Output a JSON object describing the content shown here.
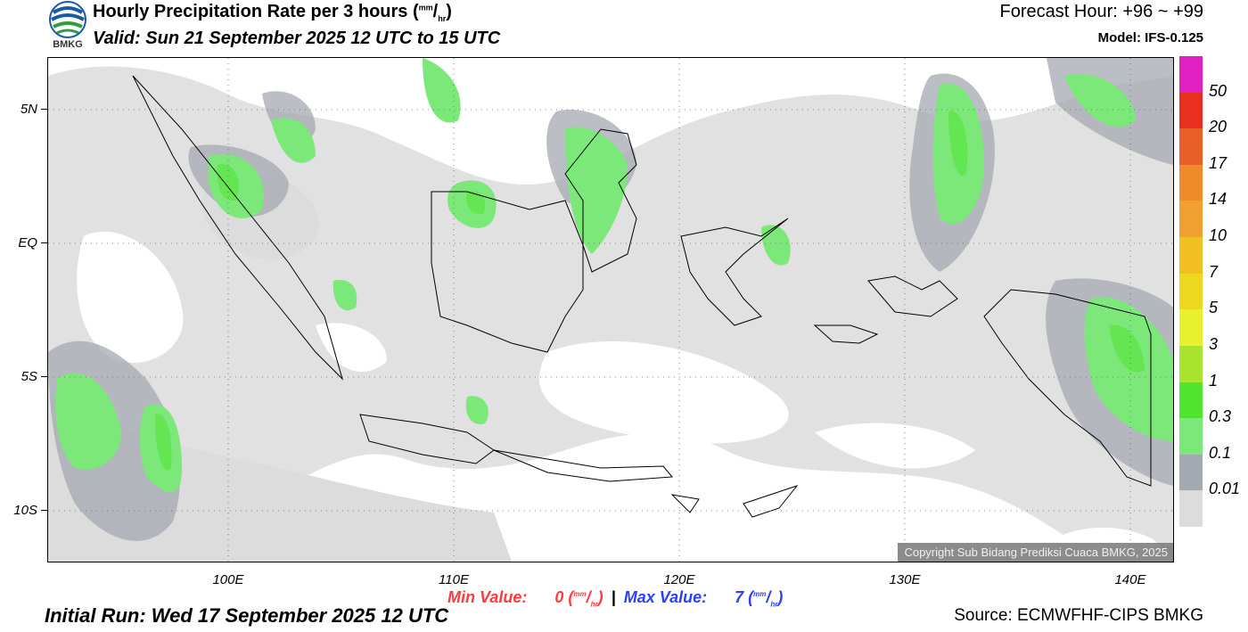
{
  "header": {
    "title_main": "Hourly Precipitation Rate per 3 hours (",
    "title_unit_num": "mm",
    "title_unit_den": "hr",
    "title_end": ")",
    "valid": "Valid: Sun 21 September 2025 12 UTC to 15 UTC",
    "forecast_hour": "Forecast Hour: +96 ~ +99",
    "model": "Model: IFS-0.125",
    "logo_text": "BMKG"
  },
  "map": {
    "lat_labels": [
      "5N",
      "EQ",
      "5S",
      "10S"
    ],
    "lon_labels": [
      "100E",
      "110E",
      "120E",
      "130E",
      "140E"
    ],
    "copyright": "Copyright Sub Bidang Prediksi Cuaca BMKG, 2025"
  },
  "colorbar": {
    "labels": [
      "50",
      "20",
      "17",
      "14",
      "10",
      "7",
      "5",
      "3",
      "1",
      "0.3",
      "0.1",
      "0.01"
    ],
    "colors": [
      "#e020c0",
      "#e83020",
      "#e86028",
      "#ee8a2a",
      "#f0a030",
      "#f0c020",
      "#ecd820",
      "#e8f030",
      "#a8e430",
      "#4fe430",
      "#7ce87a",
      "#a4a8b0",
      "#dcdcdc"
    ]
  },
  "footer": {
    "min_label": "Min Value:",
    "min_value": "0",
    "max_label": "Max Value:",
    "max_value": "7",
    "unit_num": "mm",
    "unit_den": "hr",
    "separator": "|",
    "initial_run": "Initial Run: Wed 17 September 2025 12 UTC",
    "source": "Source: ECMWFHF-CIPS BMKG"
  }
}
